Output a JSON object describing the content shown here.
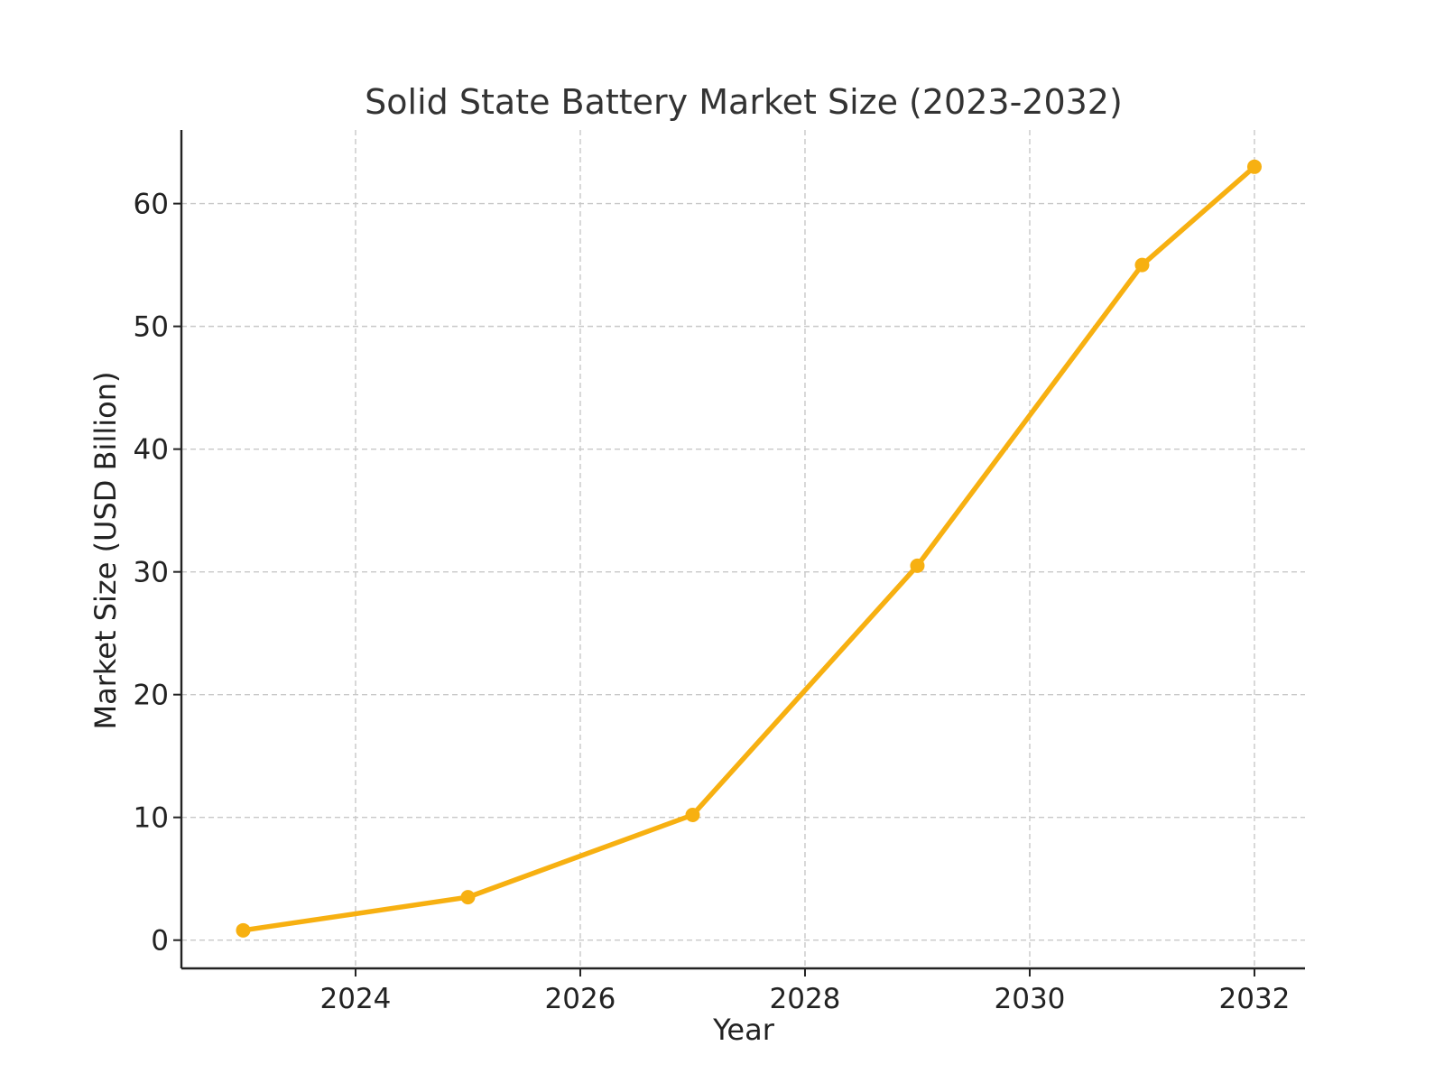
{
  "chart_data": {
    "type": "line",
    "title": "Solid State Battery Market Size (2023-2032)",
    "xlabel": "Year",
    "ylabel": "Market Size (USD Billion)",
    "xlim": [
      2022.45,
      2032.45
    ],
    "ylim": [
      -2.3,
      66
    ],
    "xticks": [
      2024,
      2026,
      2028,
      2030,
      2032
    ],
    "xtick_labels": [
      "2024",
      "2026",
      "2028",
      "2030",
      "2032"
    ],
    "yticks": [
      0,
      10,
      20,
      30,
      40,
      50,
      60
    ],
    "ytick_labels": [
      "0",
      "10",
      "20",
      "30",
      "40",
      "50",
      "60"
    ],
    "grid": true,
    "series": [
      {
        "name": "Market Size",
        "color": "#F7B011",
        "x": [
          2023,
          2025,
          2027,
          2029,
          2031,
          2032
        ],
        "y": [
          0.8,
          3.5,
          10.2,
          30.5,
          55.0,
          63.0
        ]
      }
    ]
  }
}
